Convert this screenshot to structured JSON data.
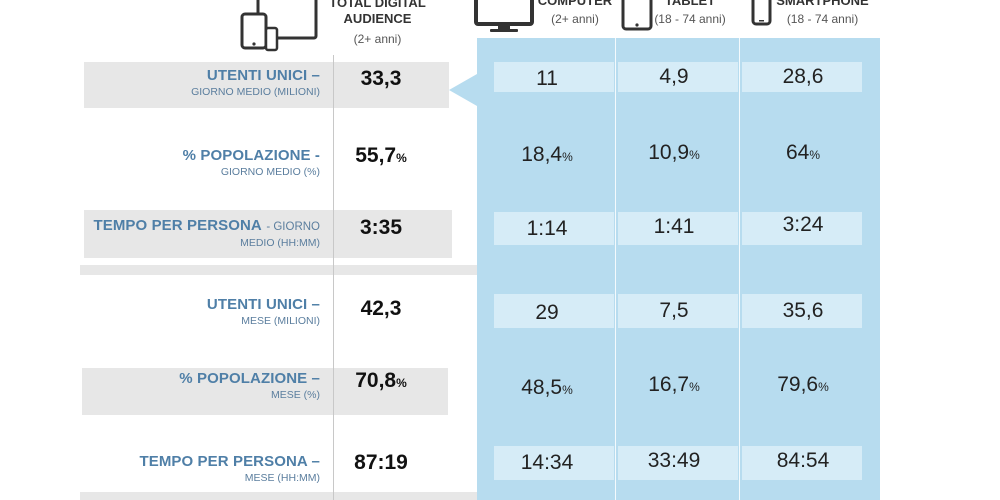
{
  "header": {
    "total": {
      "title_lines": [
        "TOTAL DIGITAL",
        "AUDIENCE"
      ],
      "sub": "(2+ anni)"
    },
    "devices": [
      {
        "title": "COMPUTER",
        "sub": "(2+ anni)",
        "icon": "monitor-icon"
      },
      {
        "title": "TABLET",
        "sub": "(18 - 74 anni)",
        "icon": "tablet-icon"
      },
      {
        "title": "SMARTPHONE",
        "sub": "(18 - 74 anni)",
        "icon": "smartphone-icon"
      }
    ]
  },
  "rows": [
    {
      "label_main": "UTENTI UNICI –",
      "label_sub": "GIORNO MEDIO (MILIONI)",
      "total": "33,3",
      "total_pct": "",
      "values": [
        "11",
        "4,9",
        "28,6"
      ],
      "pcts": [
        "",
        "",
        ""
      ]
    },
    {
      "label_main": "% POPOLAZIONE -",
      "label_sub": "GIORNO MEDIO (%)",
      "total": "55,7",
      "total_pct": "%",
      "values": [
        "18,4",
        "10,9",
        "64"
      ],
      "pcts": [
        "%",
        "%",
        "%"
      ]
    },
    {
      "label_main": "TEMPO PER PERSONA",
      "label_inline_sub": "- GIORNO",
      "label_sub": "MEDIO (HH:MM)",
      "total": "3:35",
      "total_pct": "",
      "values": [
        "1:14",
        "1:41",
        "3:24"
      ],
      "pcts": [
        "",
        "",
        ""
      ]
    },
    {
      "label_main": "UTENTI UNICI –",
      "label_sub": "MESE (MILIONI)",
      "total": "42,3",
      "total_pct": "",
      "values": [
        "29",
        "7,5",
        "35,6"
      ],
      "pcts": [
        "",
        "",
        ""
      ]
    },
    {
      "label_main": "% POPOLAZIONE –",
      "label_sub": "MESE (%)",
      "total": "70,8",
      "total_pct": "%",
      "values": [
        "48,5",
        "16,7",
        "79,6"
      ],
      "pcts": [
        "%",
        "%",
        "%"
      ]
    },
    {
      "label_main": "TEMPO PER PERSONA –",
      "label_sub": "MESE (HH:MM)",
      "total": "87:19",
      "total_pct": "",
      "values": [
        "14:34",
        "33:49",
        "84:54"
      ],
      "pcts": [
        "",
        "",
        ""
      ]
    }
  ],
  "chart_data": {
    "type": "table",
    "columns": [
      "TOTAL DIGITAL AUDIENCE (2+ anni)",
      "COMPUTER (2+ anni)",
      "TABLET (18 - 74 anni)",
      "SMARTPHONE (18 - 74 anni)"
    ],
    "rows": [
      {
        "label": "UTENTI UNICI – GIORNO MEDIO (MILIONI)",
        "values": [
          33.3,
          11,
          4.9,
          28.6
        ]
      },
      {
        "label": "% POPOLAZIONE - GIORNO MEDIO (%)",
        "values": [
          55.7,
          18.4,
          10.9,
          64
        ]
      },
      {
        "label": "TEMPO PER PERSONA - GIORNO MEDIO (HH:MM)",
        "values": [
          "3:35",
          "1:14",
          "1:41",
          "3:24"
        ]
      },
      {
        "label": "UTENTI UNICI – MESE (MILIONI)",
        "values": [
          42.3,
          29,
          7.5,
          35.6
        ]
      },
      {
        "label": "% POPOLAZIONE – MESE (%)",
        "values": [
          70.8,
          48.5,
          16.7,
          79.6
        ]
      },
      {
        "label": "TEMPO PER PERSONA – MESE (HH:MM)",
        "values": [
          "87:19",
          "14:34",
          "33:49",
          "84:54"
        ]
      }
    ]
  }
}
